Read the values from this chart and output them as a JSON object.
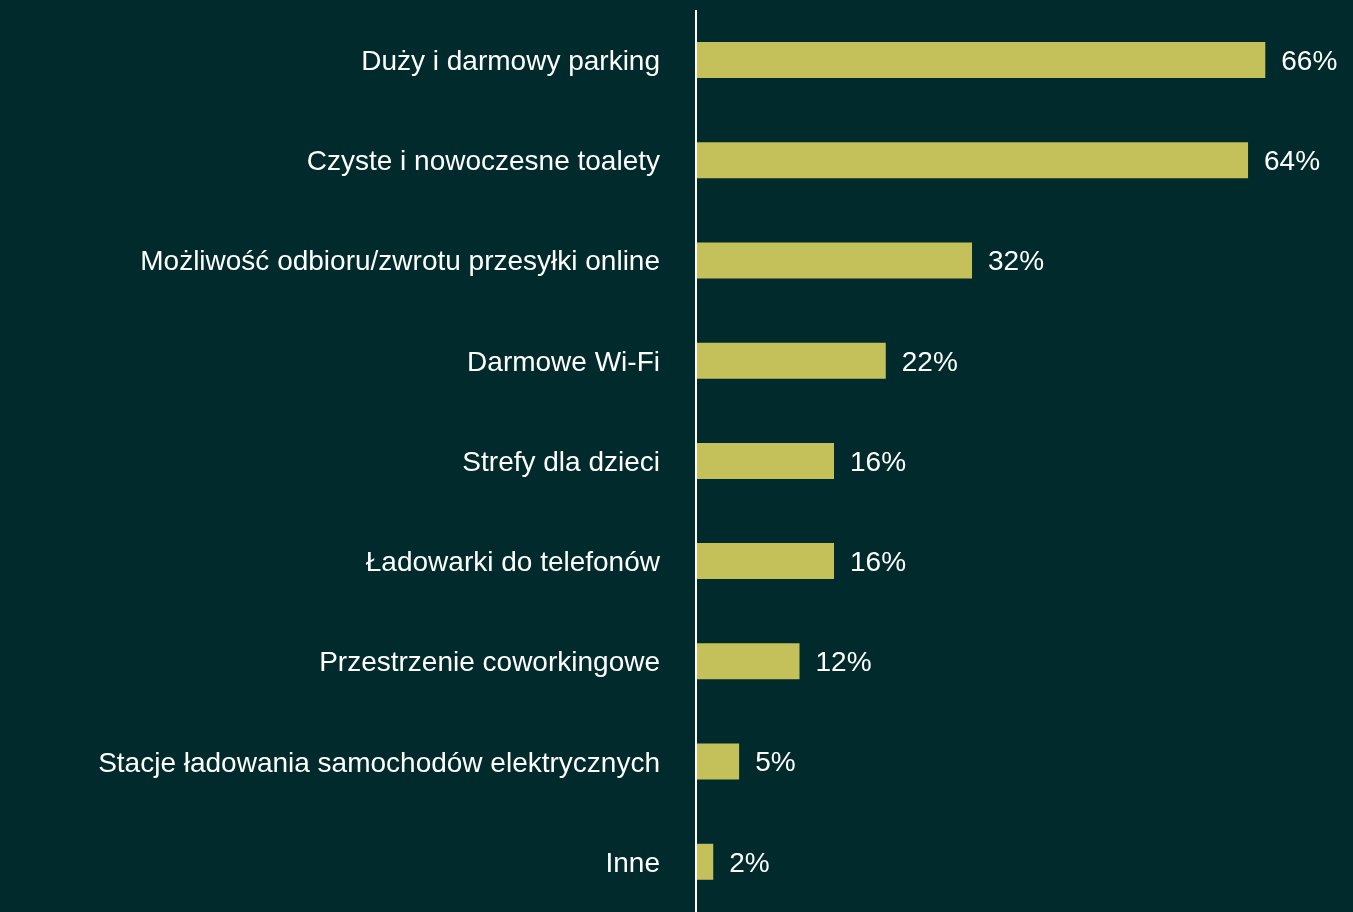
{
  "chart_data": {
    "type": "bar",
    "orientation": "horizontal",
    "categories": [
      "Duży i darmowy parking",
      "Czyste i nowoczesne toalety",
      "Możliwość odbioru/zwrotu przesyłki online",
      "Darmowe Wi-Fi",
      "Strefy dla dzieci",
      "Ładowarki do telefonów",
      "Przestrzenie coworkingowe",
      "Stacje ładowania samochodów elektrycznych",
      "Inne"
    ],
    "values": [
      66,
      64,
      32,
      22,
      16,
      16,
      12,
      5,
      2
    ],
    "value_labels": [
      "66%",
      "64%",
      "32%",
      "22%",
      "16%",
      "16%",
      "12%",
      "5%",
      "2%"
    ],
    "color": "#c4c05a"
  }
}
